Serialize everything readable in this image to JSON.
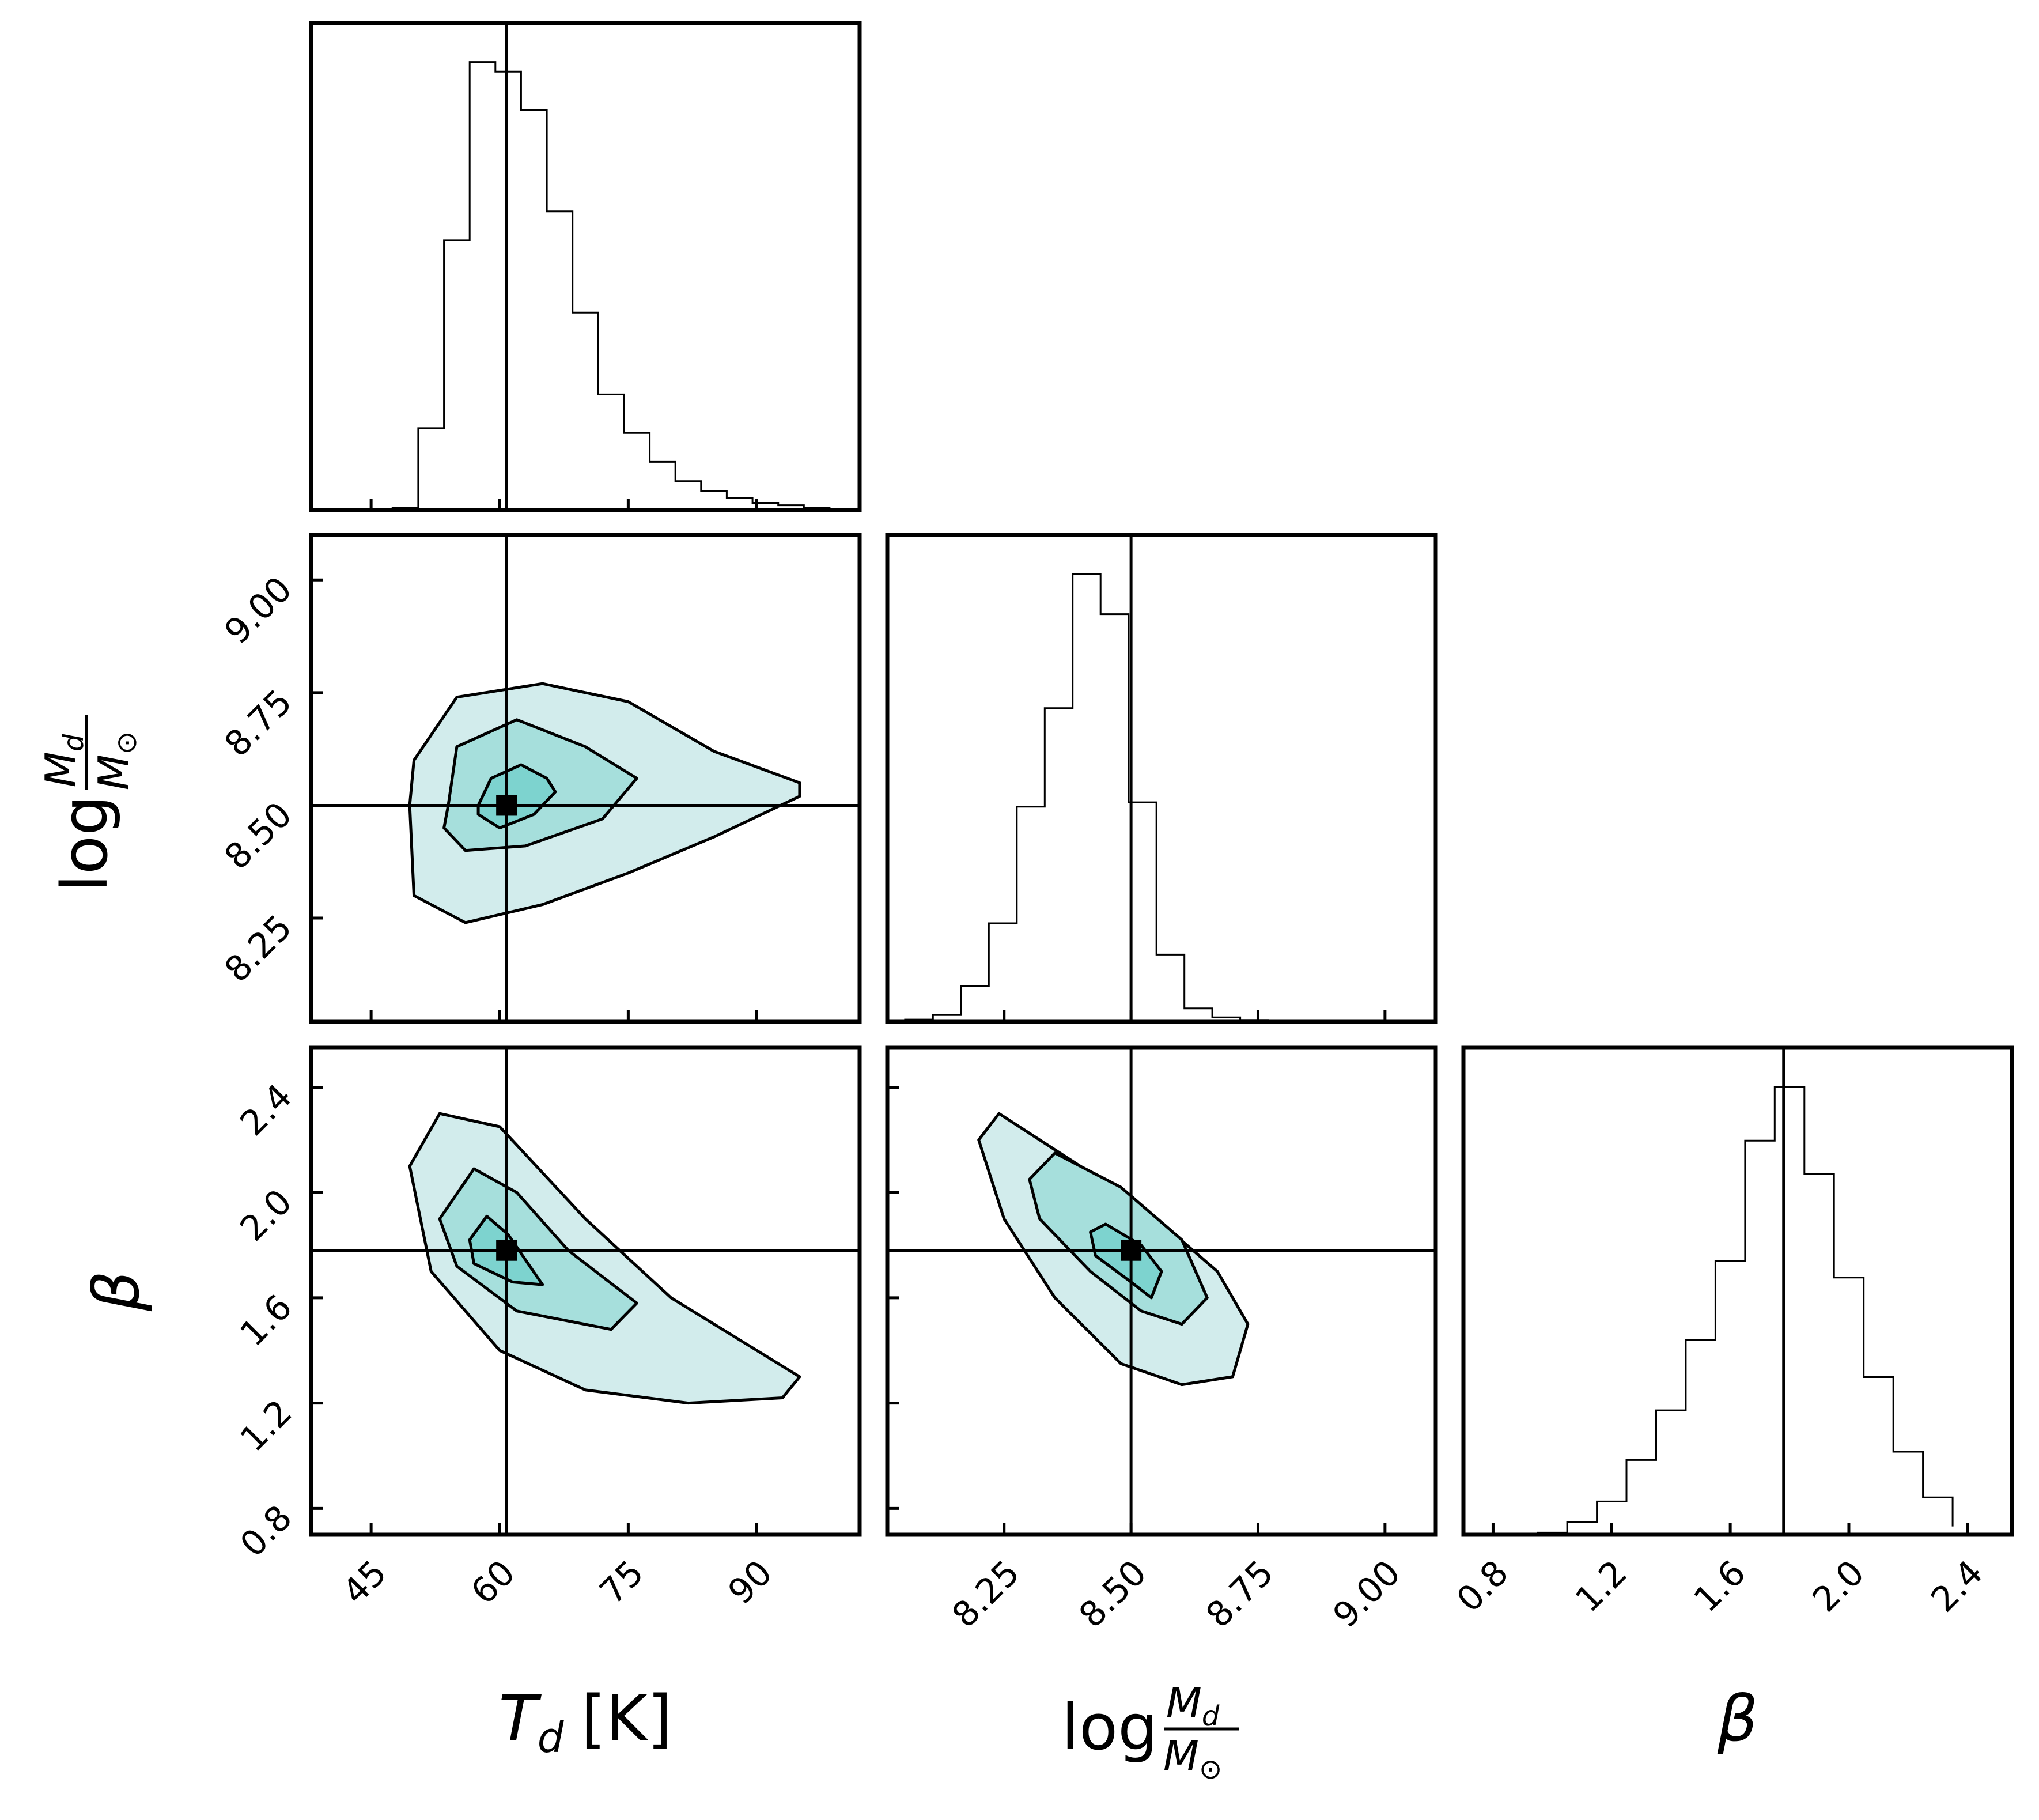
{
  "chart_data": {
    "type": "corner",
    "parameters": [
      {
        "key": "Td",
        "label": "T_d [K]",
        "range": [
          38,
          102
        ],
        "ticks": [
          45,
          60,
          75,
          90
        ],
        "tick_labels": [
          "45",
          "60",
          "75",
          "90"
        ],
        "truth": 60.8
      },
      {
        "key": "logMd",
        "label": "log M_d/M_sun",
        "range": [
          8.02,
          9.1
        ],
        "ticks": [
          8.25,
          8.5,
          8.75,
          9.0
        ],
        "tick_labels": [
          "8.25",
          "8.50",
          "8.75",
          "9.00"
        ],
        "truth": 8.5
      },
      {
        "key": "beta",
        "label": "β",
        "range": [
          0.7,
          2.55
        ],
        "ticks": [
          0.8,
          1.2,
          1.6,
          2.0,
          2.4
        ],
        "tick_labels": [
          "0.8",
          "1.2",
          "1.6",
          "2.0",
          "2.4"
        ],
        "truth": 1.78
      }
    ],
    "axis_labels": {
      "Td": {
        "main": "T",
        "sub": "d",
        "unit": "[K]"
      },
      "logMd": {
        "log": "log",
        "num": "M",
        "num_sub": "d",
        "den": "M",
        "den_sub": "⊙"
      },
      "beta": {
        "symbol": "β"
      }
    },
    "histograms": {
      "Td": {
        "edges": [
          47.5,
          50.5,
          53.5,
          56.5,
          59.5,
          62.5,
          65.5,
          68.5,
          71.5,
          74.5,
          77.5,
          80.5,
          83.5,
          86.5,
          89.5,
          92.5,
          95.5,
          98.5,
          101.5
        ],
        "counts": [
          0.5,
          17,
          56,
          93,
          91,
          83,
          62,
          41,
          24,
          16,
          10,
          6,
          4,
          2.5,
          1.5,
          1,
          0.5,
          0.2
        ]
      },
      "logMd": {
        "edges": [
          8.055,
          8.11,
          8.165,
          8.22,
          8.275,
          8.33,
          8.385,
          8.44,
          8.495,
          8.55,
          8.605,
          8.66,
          8.715,
          8.77
        ],
        "counts": [
          0.5,
          1.5,
          8,
          22,
          48,
          70,
          100,
          91,
          49,
          15,
          3,
          1,
          0.3
        ]
      },
      "beta": {
        "edges": [
          0.95,
          1.05,
          1.15,
          1.25,
          1.35,
          1.45,
          1.55,
          1.65,
          1.75,
          1.85,
          1.95,
          2.05,
          2.15,
          2.25,
          2.35
        ],
        "counts": [
          0.5,
          3,
          8,
          18,
          30,
          47,
          66,
          95,
          108,
          87,
          62,
          38,
          20,
          9,
          2
        ]
      }
    },
    "contours": {
      "logMd_vs_Td": [
        [
          [
            49.5,
            8.5
          ],
          [
            50,
            8.6
          ],
          [
            55,
            8.74
          ],
          [
            65,
            8.77
          ],
          [
            75,
            8.73
          ],
          [
            85,
            8.62
          ],
          [
            95,
            8.55
          ],
          [
            95,
            8.52
          ],
          [
            85,
            8.43
          ],
          [
            75,
            8.35
          ],
          [
            65,
            8.28
          ],
          [
            56,
            8.24
          ],
          [
            50,
            8.3
          ],
          [
            49.5,
            8.5
          ]
        ],
        [
          [
            54,
            8.5
          ],
          [
            55,
            8.63
          ],
          [
            62,
            8.69
          ],
          [
            70,
            8.63
          ],
          [
            76,
            8.56
          ],
          [
            72,
            8.47
          ],
          [
            63,
            8.41
          ],
          [
            56,
            8.4
          ],
          [
            53.5,
            8.45
          ],
          [
            54,
            8.5
          ]
        ],
        [
          [
            57.5,
            8.5
          ],
          [
            59,
            8.56
          ],
          [
            62.5,
            8.59
          ],
          [
            65.5,
            8.56
          ],
          [
            66.5,
            8.53
          ],
          [
            64,
            8.48
          ],
          [
            60,
            8.45
          ],
          [
            57.5,
            8.48
          ],
          [
            57.5,
            8.5
          ]
        ]
      ],
      "beta_vs_Td": [
        [
          [
            49.5,
            2.1
          ],
          [
            53,
            2.3
          ],
          [
            60,
            2.25
          ],
          [
            70,
            1.9
          ],
          [
            80,
            1.6
          ],
          [
            95,
            1.3
          ],
          [
            93,
            1.22
          ],
          [
            82,
            1.2
          ],
          [
            70,
            1.25
          ],
          [
            60,
            1.4
          ],
          [
            52,
            1.7
          ],
          [
            49.5,
            2.1
          ]
        ],
        [
          [
            53,
            1.9
          ],
          [
            57,
            2.09
          ],
          [
            62,
            2.0
          ],
          [
            68,
            1.78
          ],
          [
            76,
            1.58
          ],
          [
            73,
            1.48
          ],
          [
            62,
            1.55
          ],
          [
            55,
            1.72
          ],
          [
            53,
            1.9
          ]
        ],
        [
          [
            56.5,
            1.82
          ],
          [
            58.5,
            1.91
          ],
          [
            61,
            1.84
          ],
          [
            65,
            1.65
          ],
          [
            61.5,
            1.66
          ],
          [
            57,
            1.73
          ],
          [
            56.5,
            1.82
          ]
        ]
      ],
      "beta_vs_logMd": [
        [
          [
            8.2,
            2.2
          ],
          [
            8.24,
            2.3
          ],
          [
            8.4,
            2.1
          ],
          [
            8.55,
            1.9
          ],
          [
            8.67,
            1.7
          ],
          [
            8.73,
            1.5
          ],
          [
            8.7,
            1.3
          ],
          [
            8.6,
            1.27
          ],
          [
            8.48,
            1.35
          ],
          [
            8.35,
            1.6
          ],
          [
            8.25,
            1.9
          ],
          [
            8.2,
            2.2
          ]
        ],
        [
          [
            8.3,
            2.05
          ],
          [
            8.35,
            2.15
          ],
          [
            8.48,
            2.02
          ],
          [
            8.6,
            1.82
          ],
          [
            8.65,
            1.6
          ],
          [
            8.6,
            1.5
          ],
          [
            8.52,
            1.55
          ],
          [
            8.42,
            1.7
          ],
          [
            8.32,
            1.9
          ],
          [
            8.3,
            2.05
          ]
        ],
        [
          [
            8.42,
            1.85
          ],
          [
            8.45,
            1.88
          ],
          [
            8.52,
            1.8
          ],
          [
            8.56,
            1.7
          ],
          [
            8.54,
            1.6
          ],
          [
            8.5,
            1.66
          ],
          [
            8.43,
            1.76
          ],
          [
            8.42,
            1.85
          ]
        ]
      ]
    },
    "colors": {
      "contour_fill_outer": "#d2ecec",
      "contour_fill_mid": "#a6dfdc",
      "contour_fill_inner": "#7dd3cf",
      "line": "#000000",
      "background": "#ffffff"
    }
  }
}
